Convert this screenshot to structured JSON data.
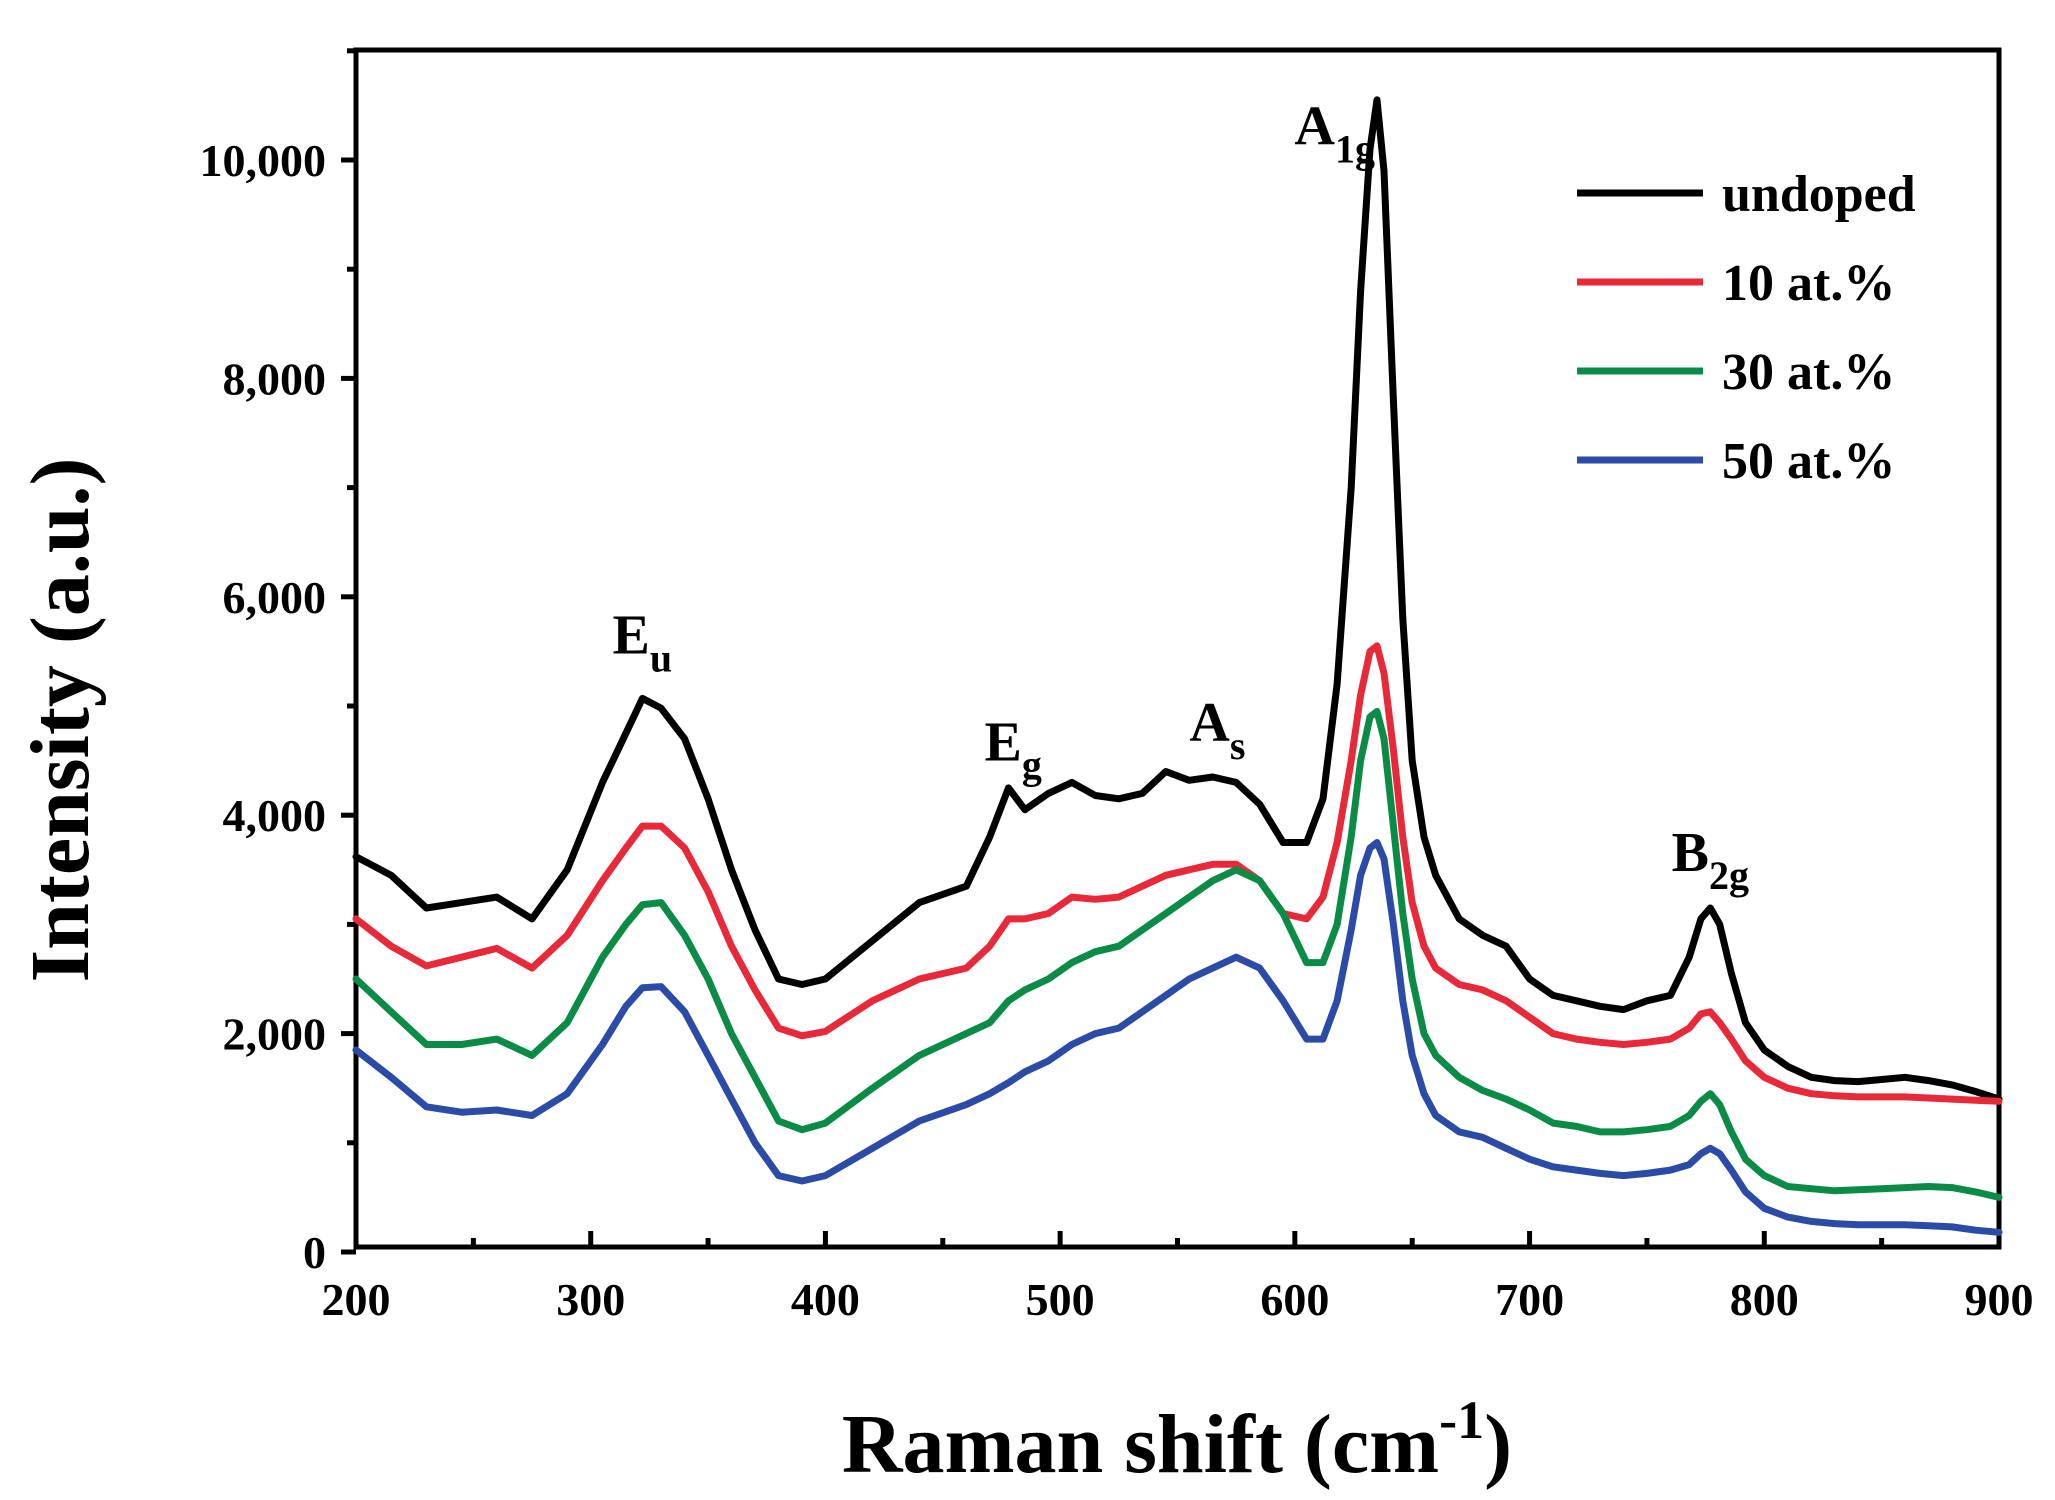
{
  "chart_data": {
    "type": "line",
    "title": "",
    "xlabel": "Raman shift (cm",
    "xlabel_sup": "-1",
    "xlabel_end": ")",
    "ylabel": "Intensity (a.u.)",
    "xlim": [
      200,
      900
    ],
    "ylim": [
      0,
      11000
    ],
    "x_ticks": [
      200,
      300,
      400,
      500,
      600,
      700,
      800,
      900
    ],
    "x_tick_labels": [
      "200",
      "300",
      "400",
      "500",
      "600",
      "700",
      "800",
      "900"
    ],
    "y_ticks": [
      0,
      2000,
      4000,
      6000,
      8000,
      10000
    ],
    "y_tick_labels": [
      "0",
      "2,000",
      "4,000",
      "6,000",
      "8,000",
      "10,000"
    ],
    "legend_position": "top-right",
    "x": [
      200,
      215,
      230,
      245,
      260,
      275,
      290,
      305,
      315,
      322,
      330,
      340,
      350,
      360,
      370,
      380,
      390,
      400,
      420,
      440,
      460,
      470,
      478,
      485,
      495,
      505,
      515,
      525,
      535,
      545,
      555,
      565,
      575,
      585,
      595,
      605,
      612,
      618,
      624,
      628,
      632,
      635,
      638,
      642,
      646,
      650,
      655,
      660,
      670,
      680,
      690,
      700,
      710,
      720,
      730,
      740,
      750,
      760,
      768,
      773,
      777,
      781,
      786,
      792,
      800,
      810,
      820,
      830,
      840,
      850,
      860,
      870,
      880,
      890,
      900
    ],
    "series": [
      {
        "name": "undoped",
        "color": "#000000",
        "values": [
          3620,
          3450,
          3150,
          3200,
          3250,
          3050,
          3500,
          4300,
          4750,
          5070,
          4980,
          4700,
          4150,
          3500,
          2950,
          2500,
          2450,
          2500,
          2850,
          3200,
          3350,
          3800,
          4250,
          4050,
          4200,
          4300,
          4180,
          4150,
          4200,
          4400,
          4320,
          4350,
          4300,
          4100,
          3750,
          3750,
          4150,
          5200,
          7000,
          8800,
          10100,
          10550,
          9900,
          7800,
          5800,
          4500,
          3800,
          3450,
          3050,
          2900,
          2800,
          2500,
          2350,
          2300,
          2250,
          2220,
          2300,
          2350,
          2700,
          3050,
          3150,
          3000,
          2550,
          2100,
          1850,
          1700,
          1600,
          1570,
          1560,
          1580,
          1600,
          1570,
          1530,
          1470,
          1400
        ]
      },
      {
        "name": "10 at.%",
        "color": "#e8293a",
        "values": [
          3050,
          2800,
          2620,
          2700,
          2780,
          2600,
          2900,
          3400,
          3700,
          3900,
          3900,
          3700,
          3300,
          2800,
          2400,
          2050,
          1980,
          2020,
          2300,
          2500,
          2600,
          2800,
          3050,
          3050,
          3100,
          3250,
          3230,
          3250,
          3350,
          3450,
          3500,
          3550,
          3550,
          3400,
          3100,
          3050,
          3250,
          3750,
          4500,
          5100,
          5500,
          5550,
          5300,
          4600,
          3800,
          3200,
          2800,
          2600,
          2450,
          2400,
          2300,
          2150,
          2000,
          1950,
          1920,
          1900,
          1920,
          1950,
          2050,
          2180,
          2200,
          2100,
          1950,
          1750,
          1600,
          1500,
          1450,
          1430,
          1420,
          1420,
          1420,
          1410,
          1400,
          1390,
          1380
        ]
      },
      {
        "name": "30 at.%",
        "color": "#0b8c46",
        "values": [
          2500,
          2200,
          1900,
          1900,
          1950,
          1800,
          2100,
          2700,
          3000,
          3180,
          3200,
          2900,
          2500,
          2000,
          1600,
          1200,
          1120,
          1180,
          1500,
          1800,
          2000,
          2100,
          2300,
          2400,
          2500,
          2650,
          2750,
          2800,
          2950,
          3100,
          3250,
          3400,
          3500,
          3400,
          3100,
          2650,
          2650,
          3000,
          3800,
          4500,
          4900,
          4950,
          4700,
          3900,
          3100,
          2500,
          2000,
          1800,
          1600,
          1480,
          1400,
          1300,
          1180,
          1150,
          1100,
          1100,
          1120,
          1150,
          1250,
          1380,
          1450,
          1350,
          1100,
          850,
          700,
          600,
          580,
          560,
          570,
          580,
          590,
          600,
          590,
          550,
          500
        ]
      },
      {
        "name": "50 at.%",
        "color": "#2b4ba6",
        "values": [
          1850,
          1600,
          1330,
          1280,
          1300,
          1250,
          1450,
          1900,
          2250,
          2420,
          2430,
          2200,
          1800,
          1400,
          1000,
          700,
          650,
          700,
          950,
          1200,
          1350,
          1450,
          1550,
          1650,
          1750,
          1900,
          2000,
          2050,
          2200,
          2350,
          2500,
          2600,
          2700,
          2600,
          2300,
          1950,
          1950,
          2300,
          2950,
          3450,
          3700,
          3750,
          3600,
          3000,
          2300,
          1800,
          1450,
          1250,
          1100,
          1050,
          950,
          850,
          780,
          750,
          720,
          700,
          720,
          750,
          800,
          900,
          950,
          900,
          750,
          550,
          400,
          320,
          280,
          260,
          250,
          250,
          250,
          240,
          230,
          200,
          180
        ]
      }
    ],
    "peak_labels": [
      {
        "main": "E",
        "sub": "u",
        "x": 322,
        "y": 5480
      },
      {
        "main": "E",
        "sub": "g",
        "x": 480,
        "y": 4500
      },
      {
        "main": "A",
        "sub": "s",
        "x": 567,
        "y": 4680
      },
      {
        "main": "A",
        "sub": "1g",
        "x": 617,
        "y": 10140
      },
      {
        "main": "B",
        "sub": "2g",
        "x": 777,
        "y": 3490
      }
    ]
  }
}
